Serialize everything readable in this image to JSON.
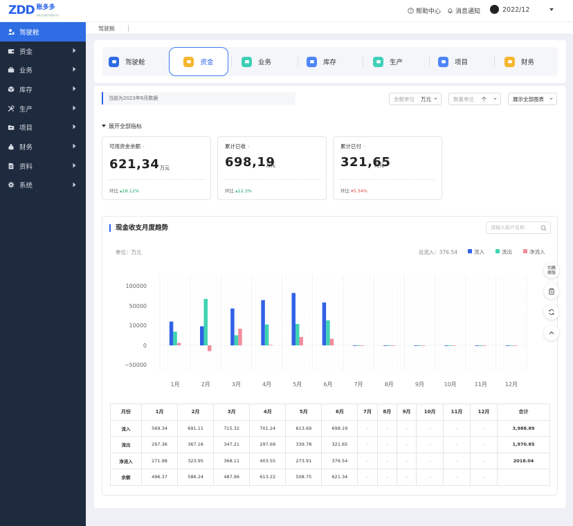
{
  "brand": {
    "mark": "ZDD",
    "name": "账多多",
    "tagline": "智能企业数字化服务平台"
  },
  "topbar": {
    "help": "帮助中心",
    "notify": "消息通知",
    "period": "2022/12"
  },
  "sidebar": {
    "items": [
      {
        "label": "驾驶舱",
        "icon": "dashboard-icon",
        "active": true
      },
      {
        "label": "资金",
        "icon": "wallet-icon"
      },
      {
        "label": "业务",
        "icon": "briefcase-icon"
      },
      {
        "label": "库存",
        "icon": "box-icon"
      },
      {
        "label": "生产",
        "icon": "tools-icon"
      },
      {
        "label": "项目",
        "icon": "folder-icon"
      },
      {
        "label": "财务",
        "icon": "moneybag-icon"
      },
      {
        "label": "资料",
        "icon": "document-icon"
      },
      {
        "label": "系统",
        "icon": "gear-icon"
      }
    ]
  },
  "breadcrumb": "驾驶舱",
  "tabs": [
    {
      "label": "驾驶舱",
      "color": "#2f6de5"
    },
    {
      "label": "资金",
      "color": "#f5b52e",
      "active": true
    },
    {
      "label": "业务",
      "color": "#3fcfb7"
    },
    {
      "label": "库存",
      "color": "#4f86f7"
    },
    {
      "label": "生产",
      "color": "#3fcfb7"
    },
    {
      "label": "项目",
      "color": "#4f86f7"
    },
    {
      "label": "财务",
      "color": "#f5b52e"
    }
  ],
  "notice": "当前为2023年6月数据",
  "filters": {
    "amount_label": "金额单位",
    "amount_value": "万元",
    "qty_label": "数量单位",
    "qty_value": "个",
    "show_all": "展示全部图表"
  },
  "expand_label": "展开全部指标",
  "kpis": [
    {
      "title": "可用资金余额",
      "value": "621,34",
      "unit": "万元",
      "change_label": "环比",
      "change": "18.12%",
      "dir": "up"
    },
    {
      "title": "累计已收",
      "value": "698,19",
      "unit": "万元",
      "change_label": "环比",
      "change": "12.3%",
      "dir": "up"
    },
    {
      "title": "累计已付",
      "value": "321,65",
      "unit": "万元",
      "change_label": "环比",
      "change": "5.34%",
      "dir": "down"
    }
  ],
  "chart_section": {
    "title": "现金收支月度趋势",
    "search_placeholder": "请输入账户名称",
    "unit_label": "单位：万元",
    "total_label": "总流入：376.54"
  },
  "side_tools": {
    "switch": "切换原版"
  },
  "chart_data": {
    "type": "bar",
    "categories": [
      "1月",
      "2月",
      "3月",
      "4月",
      "5月",
      "6月",
      "7月",
      "8月",
      "9月",
      "10月",
      "11月",
      "12月"
    ],
    "series": [
      {
        "name": "流入",
        "color": "#3062e6",
        "values": [
          40000,
          32000,
          62000,
          76000,
          88000,
          72000,
          0,
          0,
          0,
          0,
          0,
          0
        ]
      },
      {
        "name": "流出",
        "color": "#3fd3b3",
        "values": [
          23000,
          78000,
          17000,
          35000,
          36000,
          42000,
          0,
          0,
          0,
          0,
          0,
          0
        ]
      },
      {
        "name": "净流入",
        "color": "#f28c9c",
        "values": [
          4000,
          -15000,
          28000,
          1000,
          14000,
          11000,
          0,
          0,
          0,
          0,
          0,
          0
        ]
      }
    ],
    "ytick_labels": [
      "100000",
      "50000",
      "10000",
      "0",
      "−50000"
    ],
    "ylim": [
      -50000,
      100000
    ]
  },
  "table": {
    "headers": [
      "月份",
      "1月",
      "2月",
      "3月",
      "4月",
      "5月",
      "6月",
      "7月",
      "8月",
      "9月",
      "10月",
      "11月",
      "12月",
      "合计"
    ],
    "rows": [
      [
        "流入",
        "569.34",
        "691.11",
        "715.32",
        "701.24",
        "613.69",
        "698.19",
        "–",
        "–",
        "–",
        "–",
        "–",
        "–",
        "3,988.89"
      ],
      [
        "流出",
        "297.36",
        "367.16",
        "347.21",
        "297.69",
        "339.78",
        "321.65",
        "–",
        "–",
        "–",
        "–",
        "–",
        "–",
        "1,970.85"
      ],
      [
        "净流入",
        "271.98",
        "323.95",
        "368.11",
        "403.55",
        "273.91",
        "376.54",
        "–",
        "–",
        "–",
        "–",
        "–",
        "–",
        "2018.04"
      ],
      [
        "余额",
        "496.37",
        "586.24",
        "487.96",
        "613.22",
        "508.75",
        "621.34",
        "–",
        "–",
        "–",
        "–",
        "–",
        "–",
        ""
      ]
    ]
  }
}
